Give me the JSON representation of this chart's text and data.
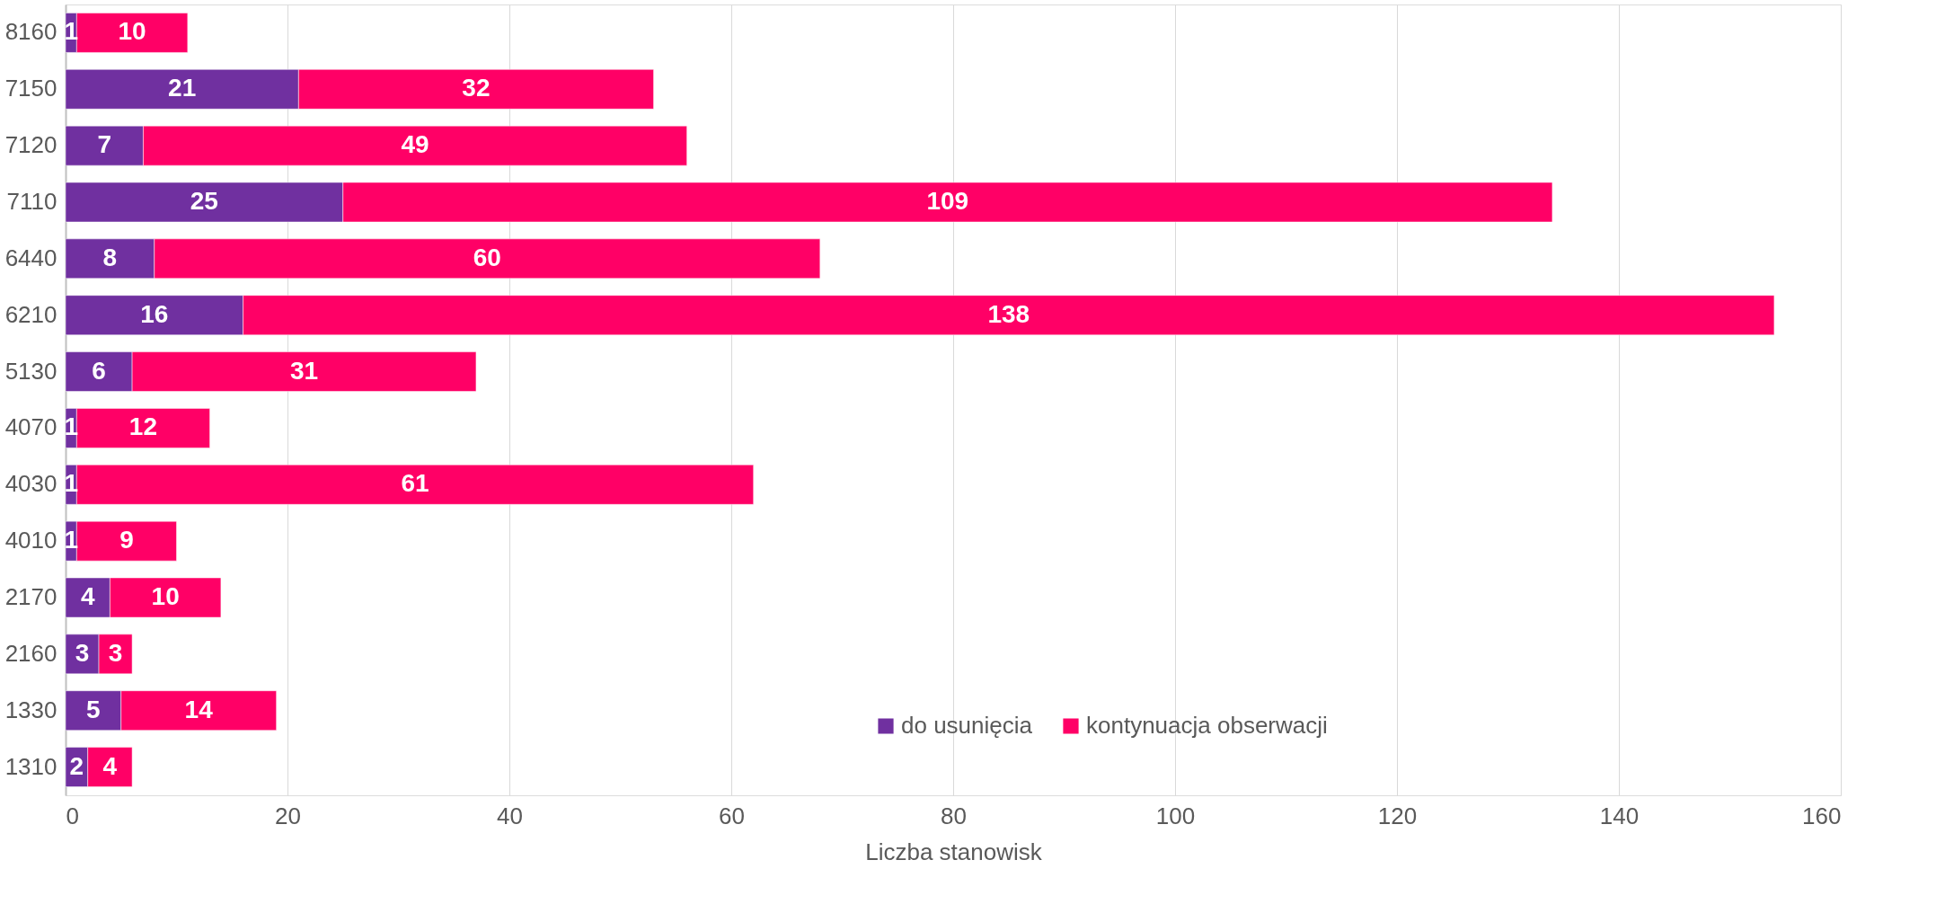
{
  "chart_data": {
    "type": "bar",
    "orientation": "horizontal",
    "stacked": true,
    "xlabel": "Liczba stanowisk",
    "categories": [
      "8160",
      "7150",
      "7120",
      "7110",
      "6440",
      "6210",
      "5130",
      "4070",
      "4030",
      "4010",
      "2170",
      "2160",
      "1330",
      "1310"
    ],
    "series": [
      {
        "name": "do usunięcia",
        "color": "#7030a0",
        "values": [
          1,
          21,
          7,
          25,
          8,
          16,
          6,
          1,
          1,
          1,
          4,
          3,
          5,
          2
        ]
      },
      {
        "name": "kontynuacja obserwacji",
        "color": "#ff0066",
        "values": [
          10,
          32,
          49,
          109,
          60,
          138,
          31,
          12,
          61,
          9,
          10,
          3,
          14,
          4
        ]
      }
    ],
    "xlim": [
      0,
      160
    ],
    "xticks": [
      0,
      20,
      40,
      60,
      80,
      100,
      120,
      140,
      160
    ],
    "grid": "x",
    "legend": "bottom right",
    "data_labels": true
  }
}
